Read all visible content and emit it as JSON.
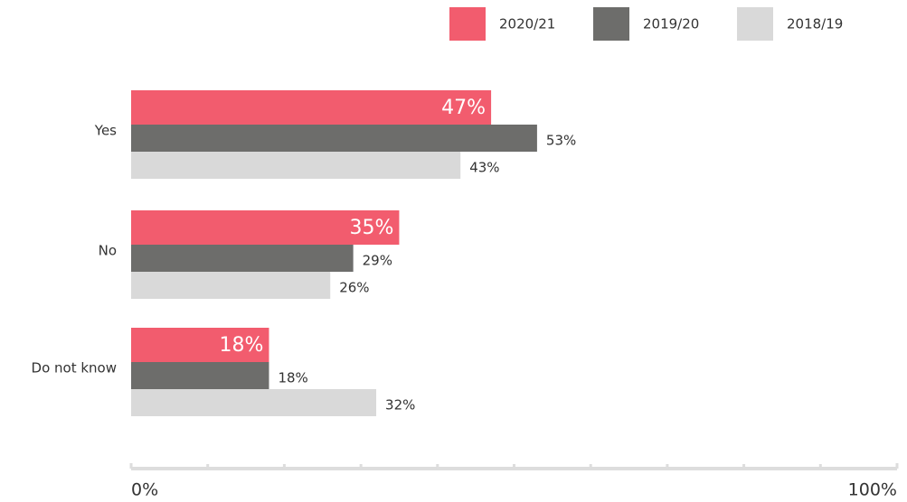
{
  "chart_data": {
    "type": "bar",
    "orientation": "horizontal",
    "categories": [
      "Yes",
      "No",
      "Do not know"
    ],
    "series": [
      {
        "name": "2020/21",
        "color": "#f25c6e",
        "values": [
          47,
          35,
          18
        ],
        "value_labels": [
          "47%",
          "35%",
          "18%"
        ]
      },
      {
        "name": "2019/20",
        "color": "#6d6d6b",
        "values": [
          53,
          29,
          18
        ],
        "value_labels": [
          "53%",
          "29%",
          "18%"
        ]
      },
      {
        "name": "2018/19",
        "color": "#d9d9d9",
        "values": [
          43,
          26,
          32
        ],
        "value_labels": [
          "43%",
          "26%",
          "32%"
        ]
      }
    ],
    "xlim": [
      0,
      100
    ],
    "xticks": [
      {
        "value": 0,
        "label": "0%"
      },
      {
        "value": 100,
        "label": "100%"
      }
    ],
    "xminor_ticks": [
      10,
      20,
      30,
      40,
      50,
      60,
      70,
      80,
      90
    ],
    "legend": "top-right",
    "grid": false
  }
}
